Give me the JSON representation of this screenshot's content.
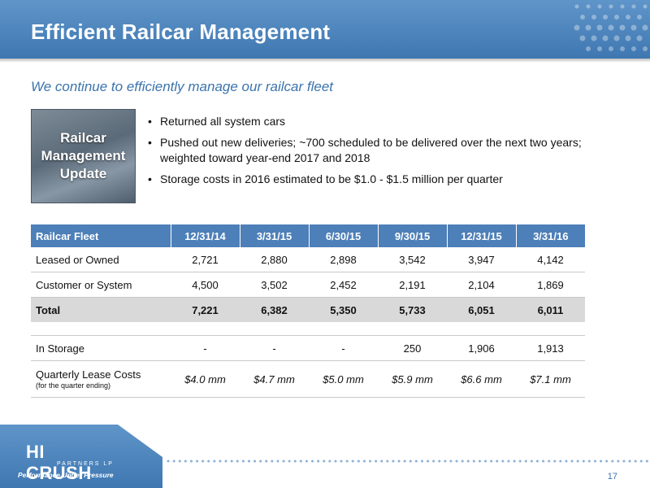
{
  "slide": {
    "title": "Efficient Railcar Management",
    "subtitle": "We continue to efficiently manage our railcar fleet",
    "update_box": "Railcar Management Update",
    "bullets": [
      "Returned all system cars",
      "Pushed out new deliveries; ~700 scheduled to be delivered over the next two years; weighted toward year-end 2017 and 2018",
      "Storage costs in 2016 estimated to be $1.0 - $1.5 million per quarter"
    ],
    "page_number": "17"
  },
  "table": {
    "headers": [
      "Railcar Fleet",
      "12/31/14",
      "3/31/15",
      "6/30/15",
      "9/30/15",
      "12/31/15",
      "3/31/16"
    ],
    "rows": [
      {
        "label": "Leased or Owned",
        "values": [
          "2,721",
          "2,880",
          "2,898",
          "3,542",
          "3,947",
          "4,142"
        ]
      },
      {
        "label": "Customer or System",
        "values": [
          "4,500",
          "3,502",
          "2,452",
          "2,191",
          "2,104",
          "1,869"
        ]
      },
      {
        "label": "Total",
        "values": [
          "7,221",
          "6,382",
          "5,350",
          "5,733",
          "6,051",
          "6,011"
        ]
      },
      {
        "label": "In Storage",
        "values": [
          "-",
          "-",
          "-",
          "250",
          "1,906",
          "1,913"
        ]
      },
      {
        "label": "Quarterly Lease Costs",
        "note": "(for the quarter ending)",
        "values": [
          "$4.0 mm",
          "$4.7 mm",
          "$5.0 mm",
          "$5.9 mm",
          "$6.6 mm",
          "$7.1 mm"
        ]
      }
    ]
  },
  "logo": {
    "brand": "HI CRUSH",
    "partners": "PARTNERS LP",
    "tagline": "Performance Under Pressure"
  },
  "colors": {
    "header_blue": "#4f86bf",
    "table_header": "#4d7fb8",
    "subtitle_blue": "#3b73ad",
    "total_row": "#d9d9d9",
    "footer_blue": "#3f77b1"
  }
}
